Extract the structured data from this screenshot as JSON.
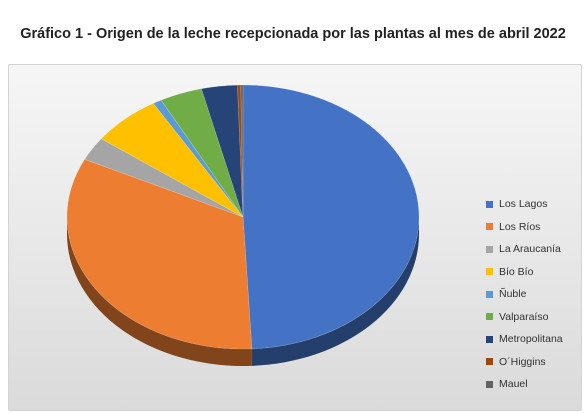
{
  "title": "Gráfico 1 - Origen de la leche recepcionada por las plantas al mes de abril 2022",
  "chart_data": {
    "type": "pie",
    "title": "Gráfico 1 - Origen de la leche recepcionada por las plantas al mes de abril 2022",
    "categories": [
      "Los Lagos",
      "Los Ríos",
      "La Araucanía",
      "Bío Bío",
      "Ñuble",
      "Valparaíso",
      "Metropolitana",
      "O´Higgins",
      "Mauel"
    ],
    "values": [
      49.2,
      33.0,
      2.9,
      6.4,
      0.8,
      3.9,
      3.3,
      0.3,
      0.2
    ],
    "colors": [
      "#4472c4",
      "#ed7d31",
      "#a5a5a5",
      "#ffc000",
      "#5b9bd5",
      "#70ad47",
      "#264478",
      "#9e480e",
      "#636363"
    ],
    "legend_position": "right",
    "style": "3d"
  }
}
